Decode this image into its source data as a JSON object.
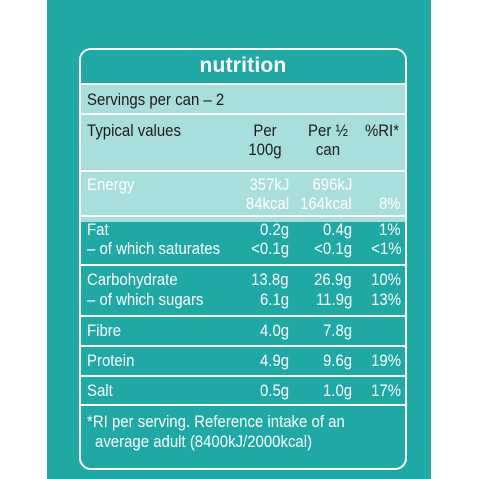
{
  "title": "nutrition",
  "servings": "Servings per can – 2",
  "headers": {
    "typical": "Typical values",
    "per100_line1": "Per",
    "per100_line2": "100g",
    "perhalf_line1": "Per ½",
    "perhalf_line2": "can",
    "ri": "%RI*"
  },
  "rows": {
    "energy": {
      "label": "Energy",
      "per100_kj": "357kJ",
      "per100_kcal": "84kcal",
      "perhalf_kj": "696kJ",
      "perhalf_kcal": "164kcal",
      "ri": "8%"
    },
    "fat": {
      "label": "Fat",
      "per100": "0.2g",
      "perhalf": "0.4g",
      "ri": "1%"
    },
    "saturates": {
      "label": "– of which saturates",
      "per100": "<0.1g",
      "perhalf": "<0.1g",
      "ri": "<1%"
    },
    "carbohydrate": {
      "label": "Carbohydrate",
      "per100": "13.8g",
      "perhalf": "26.9g",
      "ri": "10%"
    },
    "sugars": {
      "label": "– of which sugars",
      "per100": "6.1g",
      "perhalf": "11.9g",
      "ri": "13%"
    },
    "fibre": {
      "label": "Fibre",
      "per100": "4.0g",
      "perhalf": "7.8g",
      "ri": ""
    },
    "protein": {
      "label": "Protein",
      "per100": "4.9g",
      "perhalf": "9.6g",
      "ri": "19%"
    },
    "salt": {
      "label": "Salt",
      "per100": "0.5g",
      "perhalf": "1.0g",
      "ri": "17%"
    }
  },
  "footnote_line1": "*RI per serving. Reference intake of an",
  "footnote_line2": "average adult (8400kJ/2000kcal)",
  "colors": {
    "teal": "#1fa9a4",
    "light_teal": "#a8dfdc",
    "text_dark": "#1b1b1b",
    "text_light": "#ffffff"
  }
}
